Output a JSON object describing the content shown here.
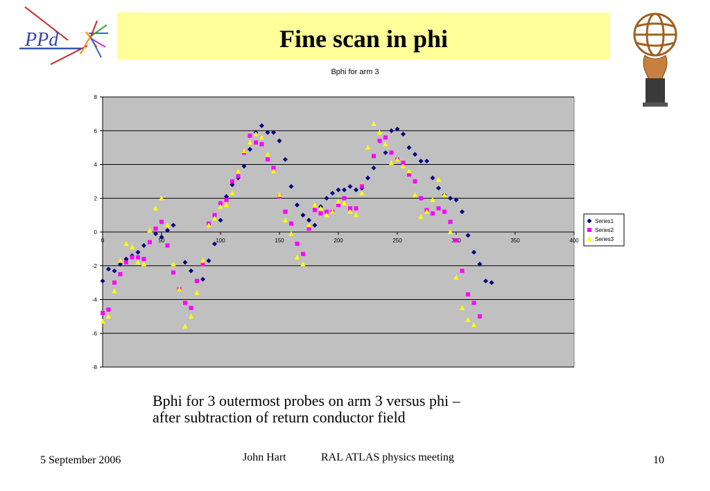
{
  "slide": {
    "title": "Fine scan in phi",
    "logo_text": "PPd",
    "caption_line1": "Bphi for 3 outermost probes on arm 3 versus phi –",
    "caption_line2": "after subtraction of return conductor field",
    "footer_date": "5 September 2006",
    "footer_author": "John Hart",
    "footer_meeting": "RAL ATLAS physics meeting",
    "footer_page": "10"
  },
  "colors": {
    "title_bg": "#ffff99",
    "plot_bg": "#c0c0c0",
    "series1": "#000080",
    "series2": "#ff00ff",
    "series3": "#ffff00"
  },
  "chart_data": {
    "type": "scatter",
    "title": "Bphi for arm 3",
    "xlabel": "",
    "ylabel": "",
    "xlim": [
      0,
      400
    ],
    "ylim": [
      -8,
      8
    ],
    "x_ticks": [
      0,
      50,
      100,
      150,
      200,
      250,
      300,
      350,
      400
    ],
    "y_ticks": [
      -8,
      -6,
      -4,
      -2,
      0,
      2,
      4,
      6,
      8
    ],
    "grid": "horizontal",
    "legend_position": "right",
    "series": [
      {
        "name": "Series1",
        "marker": "diamond",
        "points": [
          [
            0,
            -2.9
          ],
          [
            5,
            -2.2
          ],
          [
            10,
            -2.3
          ],
          [
            15,
            -1.9
          ],
          [
            20,
            -1.6
          ],
          [
            25,
            -1.4
          ],
          [
            30,
            -1.2
          ],
          [
            35,
            -0.8
          ],
          [
            45,
            -0.1
          ],
          [
            50,
            -0.3
          ],
          [
            55,
            0.1
          ],
          [
            60,
            0.4
          ],
          [
            70,
            -1.8
          ],
          [
            75,
            -2.3
          ],
          [
            80,
            -2.9
          ],
          [
            85,
            -2.8
          ],
          [
            90,
            -1.7
          ],
          [
            95,
            -0.7
          ],
          [
            100,
            0.7
          ],
          [
            105,
            2.1
          ],
          [
            110,
            2.8
          ],
          [
            115,
            3.2
          ],
          [
            120,
            3.9
          ],
          [
            125,
            4.9
          ],
          [
            130,
            5.9
          ],
          [
            135,
            6.3
          ],
          [
            140,
            5.9
          ],
          [
            145,
            5.9
          ],
          [
            150,
            5.4
          ],
          [
            155,
            4.3
          ],
          [
            160,
            2.7
          ],
          [
            165,
            1.6
          ],
          [
            170,
            1.0
          ],
          [
            175,
            0.7
          ],
          [
            180,
            0.4
          ],
          [
            185,
            1.5
          ],
          [
            190,
            2.0
          ],
          [
            195,
            2.3
          ],
          [
            200,
            2.5
          ],
          [
            205,
            2.5
          ],
          [
            210,
            2.7
          ],
          [
            215,
            2.5
          ],
          [
            220,
            2.6
          ],
          [
            225,
            3.2
          ],
          [
            230,
            3.8
          ],
          [
            240,
            4.7
          ],
          [
            245,
            6.0
          ],
          [
            250,
            6.1
          ],
          [
            255,
            5.8
          ],
          [
            260,
            5.0
          ],
          [
            265,
            4.6
          ],
          [
            270,
            4.2
          ],
          [
            275,
            4.2
          ],
          [
            280,
            3.2
          ],
          [
            285,
            2.6
          ],
          [
            290,
            2.2
          ],
          [
            295,
            2.0
          ],
          [
            300,
            1.9
          ],
          [
            305,
            1.2
          ],
          [
            310,
            -0.2
          ],
          [
            315,
            -1.2
          ],
          [
            320,
            -1.9
          ],
          [
            325,
            -2.9
          ],
          [
            330,
            -3.0
          ]
        ]
      },
      {
        "name": "Series2",
        "marker": "square",
        "points": [
          [
            0,
            -4.8
          ],
          [
            5,
            -4.6
          ],
          [
            10,
            -3.0
          ],
          [
            15,
            -2.5
          ],
          [
            20,
            -1.8
          ],
          [
            25,
            -1.5
          ],
          [
            30,
            -1.5
          ],
          [
            35,
            -1.6
          ],
          [
            40,
            -0.6
          ],
          [
            45,
            0.2
          ],
          [
            50,
            0.6
          ],
          [
            55,
            -0.8
          ],
          [
            60,
            -2.4
          ],
          [
            65,
            -3.4
          ],
          [
            70,
            -4.2
          ],
          [
            75,
            -4.5
          ],
          [
            80,
            -2.9
          ],
          [
            85,
            -1.9
          ],
          [
            90,
            0.5
          ],
          [
            95,
            1.0
          ],
          [
            100,
            1.7
          ],
          [
            105,
            1.9
          ],
          [
            110,
            3.0
          ],
          [
            115,
            3.3
          ],
          [
            120,
            4.7
          ],
          [
            125,
            5.7
          ],
          [
            130,
            5.3
          ],
          [
            135,
            5.2
          ],
          [
            140,
            4.3
          ],
          [
            145,
            3.8
          ],
          [
            150,
            2.1
          ],
          [
            155,
            1.2
          ],
          [
            160,
            0.5
          ],
          [
            165,
            -0.7
          ],
          [
            170,
            -1.3
          ],
          [
            175,
            0.2
          ],
          [
            180,
            1.3
          ],
          [
            185,
            1.1
          ],
          [
            190,
            1.2
          ],
          [
            195,
            1.2
          ],
          [
            200,
            1.6
          ],
          [
            205,
            2.0
          ],
          [
            210,
            1.4
          ],
          [
            215,
            1.4
          ],
          [
            220,
            2.7
          ],
          [
            230,
            4.5
          ],
          [
            235,
            5.4
          ],
          [
            240,
            5.6
          ],
          [
            245,
            4.7
          ],
          [
            250,
            4.3
          ],
          [
            255,
            4.1
          ],
          [
            260,
            3.4
          ],
          [
            265,
            3.0
          ],
          [
            270,
            2.0
          ],
          [
            275,
            1.3
          ],
          [
            280,
            1.1
          ],
          [
            285,
            1.4
          ],
          [
            290,
            1.2
          ],
          [
            295,
            0.6
          ],
          [
            300,
            -0.5
          ],
          [
            305,
            -2.3
          ],
          [
            310,
            -3.7
          ],
          [
            315,
            -4.2
          ],
          [
            320,
            -5.0
          ]
        ]
      },
      {
        "name": "Series3",
        "marker": "triangle",
        "points": [
          [
            0,
            -5.3
          ],
          [
            5,
            -5.0
          ],
          [
            10,
            -3.5
          ],
          [
            15,
            -1.7
          ],
          [
            20,
            -0.7
          ],
          [
            25,
            -0.9
          ],
          [
            30,
            -1.8
          ],
          [
            35,
            -1.9
          ],
          [
            40,
            0.1
          ],
          [
            45,
            1.4
          ],
          [
            50,
            2.0
          ],
          [
            55,
            0.4
          ],
          [
            60,
            -1.9
          ],
          [
            65,
            -3.4
          ],
          [
            70,
            -5.6
          ],
          [
            75,
            -5.0
          ],
          [
            80,
            -3.6
          ],
          [
            85,
            -1.7
          ],
          [
            90,
            0.4
          ],
          [
            95,
            0.8
          ],
          [
            100,
            1.5
          ],
          [
            105,
            1.6
          ],
          [
            110,
            2.3
          ],
          [
            115,
            3.6
          ],
          [
            120,
            4.8
          ],
          [
            125,
            5.3
          ],
          [
            130,
            5.8
          ],
          [
            135,
            5.6
          ],
          [
            140,
            4.6
          ],
          [
            145,
            3.6
          ],
          [
            150,
            2.2
          ],
          [
            155,
            0.7
          ],
          [
            160,
            -0.1
          ],
          [
            165,
            -1.5
          ],
          [
            170,
            -1.9
          ],
          [
            175,
            0.4
          ],
          [
            180,
            1.6
          ],
          [
            185,
            1.4
          ],
          [
            190,
            1.0
          ],
          [
            195,
            1.2
          ],
          [
            200,
            1.8
          ],
          [
            205,
            1.7
          ],
          [
            210,
            1.2
          ],
          [
            215,
            1.0
          ],
          [
            220,
            2.3
          ],
          [
            225,
            5.0
          ],
          [
            230,
            6.4
          ],
          [
            235,
            5.9
          ],
          [
            240,
            5.2
          ],
          [
            245,
            4.1
          ],
          [
            250,
            4.3
          ],
          [
            255,
            3.9
          ],
          [
            260,
            3.6
          ],
          [
            265,
            2.2
          ],
          [
            270,
            0.9
          ],
          [
            275,
            1.2
          ],
          [
            280,
            1.9
          ],
          [
            285,
            3.1
          ],
          [
            290,
            2.2
          ],
          [
            295,
            0.0
          ],
          [
            300,
            -2.7
          ],
          [
            305,
            -4.5
          ],
          [
            310,
            -5.2
          ],
          [
            315,
            -5.5
          ]
        ]
      }
    ]
  }
}
